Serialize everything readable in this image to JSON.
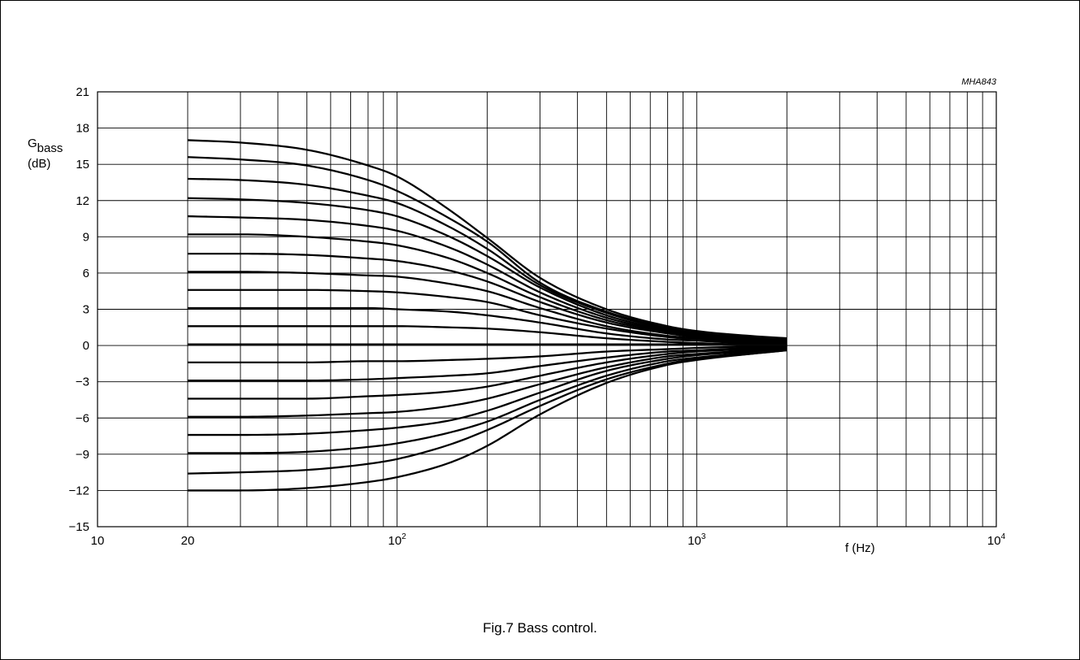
{
  "figure": {
    "code": "MHA843",
    "caption": "Fig.7  Bass control."
  },
  "chart_data": {
    "type": "line",
    "title": "",
    "xscale": "log",
    "xlim": [
      10,
      10000
    ],
    "ylim": [
      -15,
      21
    ],
    "grid": true,
    "xlabel": "f (Hz)",
    "ylabel_main": "G",
    "ylabel_sub": "bass",
    "ylabel_unit": "(dB)",
    "yticks": [
      21,
      18,
      15,
      12,
      9,
      6,
      3,
      0,
      -3,
      -6,
      -9,
      -12,
      -15
    ],
    "ytick_labels": [
      "21",
      "18",
      "15",
      "12",
      "9",
      "6",
      "3",
      "0",
      "−3",
      "−6",
      "−9",
      "−12",
      "−15"
    ],
    "xticks": [
      {
        "value": 10,
        "base": "10",
        "exp": ""
      },
      {
        "value": 20,
        "base": "20",
        "exp": ""
      },
      {
        "value": 100,
        "base": "10",
        "exp": "2"
      },
      {
        "value": 1000,
        "base": "10",
        "exp": "3"
      },
      {
        "value": 10000,
        "base": "10",
        "exp": "4"
      }
    ],
    "x_gridlines": [
      20,
      30,
      40,
      50,
      60,
      70,
      80,
      90,
      100,
      200,
      300,
      400,
      500,
      600,
      700,
      800,
      900,
      1000,
      2000,
      3000,
      4000,
      5000,
      6000,
      7000,
      8000,
      9000,
      10000
    ],
    "y_gridlines": [
      18,
      15,
      12,
      9,
      6,
      3,
      0,
      -3,
      -6,
      -9,
      -12
    ],
    "x": [
      20,
      30,
      50,
      80,
      100,
      150,
      200,
      300,
      500,
      800,
      1000,
      1500,
      2000
    ],
    "series": [
      {
        "values": [
          17.0,
          16.8,
          16.2,
          14.9,
          14.0,
          11.2,
          8.9,
          5.6,
          3.0,
          1.6,
          1.2,
          0.8,
          0.6
        ]
      },
      {
        "values": [
          15.6,
          15.4,
          14.9,
          13.7,
          12.8,
          10.5,
          8.6,
          5.2,
          2.8,
          1.5,
          1.1,
          0.7,
          0.6
        ]
      },
      {
        "values": [
          13.8,
          13.7,
          13.3,
          12.4,
          11.8,
          9.8,
          8.0,
          5.0,
          2.7,
          1.4,
          1.1,
          0.7,
          0.5
        ]
      },
      {
        "values": [
          12.2,
          12.1,
          11.8,
          11.2,
          10.7,
          9.0,
          7.4,
          4.8,
          2.5,
          1.3,
          1.0,
          0.6,
          0.5
        ]
      },
      {
        "values": [
          10.7,
          10.6,
          10.4,
          9.9,
          9.5,
          8.1,
          6.7,
          4.4,
          2.3,
          1.2,
          0.9,
          0.6,
          0.4
        ]
      },
      {
        "values": [
          9.2,
          9.2,
          9.0,
          8.6,
          8.3,
          7.2,
          6.0,
          4.0,
          2.1,
          1.1,
          0.8,
          0.5,
          0.4
        ]
      },
      {
        "values": [
          7.6,
          7.6,
          7.5,
          7.2,
          7.0,
          6.2,
          5.3,
          3.6,
          1.9,
          1.0,
          0.7,
          0.5,
          0.3
        ]
      },
      {
        "values": [
          6.1,
          6.1,
          6.0,
          5.8,
          5.7,
          5.1,
          4.5,
          3.1,
          1.6,
          0.8,
          0.6,
          0.4,
          0.3
        ]
      },
      {
        "values": [
          4.6,
          4.6,
          4.6,
          4.5,
          4.4,
          4.0,
          3.6,
          2.5,
          1.4,
          0.7,
          0.5,
          0.3,
          0.2
        ]
      },
      {
        "values": [
          3.1,
          3.1,
          3.1,
          3.1,
          3.0,
          2.8,
          2.5,
          1.9,
          1.0,
          0.5,
          0.4,
          0.2,
          0.2
        ]
      },
      {
        "values": [
          1.6,
          1.6,
          1.6,
          1.6,
          1.6,
          1.5,
          1.4,
          1.1,
          0.6,
          0.3,
          0.2,
          0.1,
          0.1
        ]
      },
      {
        "values": [
          0.1,
          0.1,
          0.1,
          0.1,
          0.1,
          0.1,
          0.1,
          0.1,
          0.1,
          0.1,
          0.1,
          0.1,
          0.1
        ]
      },
      {
        "values": [
          -1.4,
          -1.4,
          -1.4,
          -1.3,
          -1.3,
          -1.2,
          -1.1,
          -0.9,
          -0.5,
          -0.3,
          -0.2,
          -0.1,
          -0.1
        ]
      },
      {
        "values": [
          -2.9,
          -2.9,
          -2.9,
          -2.8,
          -2.7,
          -2.5,
          -2.3,
          -1.7,
          -1.0,
          -0.5,
          -0.4,
          -0.2,
          -0.1
        ]
      },
      {
        "values": [
          -4.4,
          -4.4,
          -4.4,
          -4.2,
          -4.1,
          -3.8,
          -3.4,
          -2.5,
          -1.4,
          -0.7,
          -0.5,
          -0.3,
          -0.2
        ]
      },
      {
        "values": [
          -5.9,
          -5.9,
          -5.8,
          -5.6,
          -5.5,
          -5.0,
          -4.4,
          -3.2,
          -1.8,
          -0.9,
          -0.7,
          -0.4,
          -0.2
        ]
      },
      {
        "values": [
          -7.4,
          -7.4,
          -7.3,
          -7.0,
          -6.8,
          -6.2,
          -5.4,
          -3.9,
          -2.1,
          -1.1,
          -0.8,
          -0.5,
          -0.3
        ]
      },
      {
        "values": [
          -8.9,
          -8.9,
          -8.8,
          -8.4,
          -8.1,
          -7.2,
          -6.3,
          -4.5,
          -2.5,
          -1.3,
          -1.0,
          -0.6,
          -0.3
        ]
      },
      {
        "values": [
          -10.6,
          -10.5,
          -10.3,
          -9.8,
          -9.4,
          -8.2,
          -7.0,
          -5.0,
          -2.8,
          -1.5,
          -1.1,
          -0.7,
          -0.4
        ]
      },
      {
        "values": [
          -12.0,
          -12.0,
          -11.8,
          -11.3,
          -10.9,
          -9.7,
          -8.3,
          -5.7,
          -3.1,
          -1.6,
          -1.2,
          -0.7,
          -0.4
        ]
      }
    ]
  }
}
